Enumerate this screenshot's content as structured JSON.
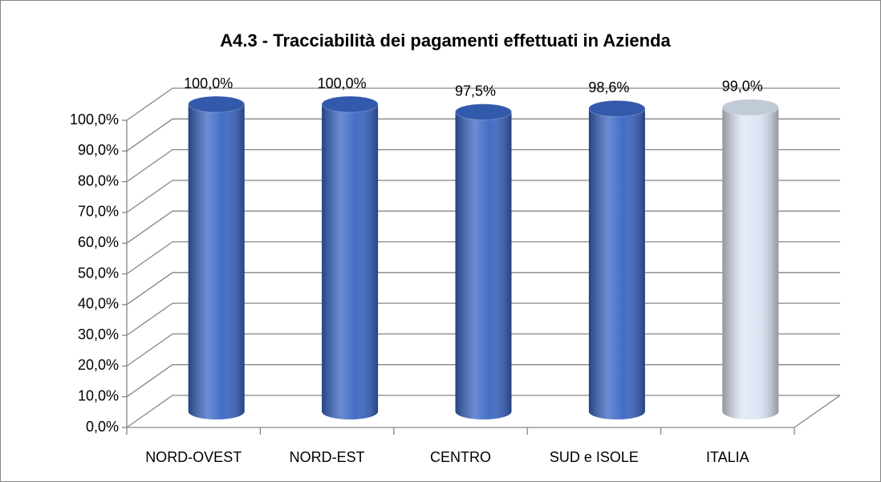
{
  "chart_data": {
    "type": "bar3d",
    "title": "A4.3 - Tracciabilità dei pagamenti effettuati in Azienda",
    "categories": [
      "NORD-OVEST",
      "NORD-EST",
      "CENTRO",
      "SUD e ISOLE",
      "ITALIA"
    ],
    "values": [
      100,
      100,
      97.5,
      98.6,
      99.0
    ],
    "value_labels": [
      "100,0%",
      "100,0%",
      "97,5%",
      "98,6%",
      "99,0%"
    ],
    "colors": [
      "#3a66c4",
      "#3a66c4",
      "#3a66c4",
      "#3a66c4",
      "#dce6f5"
    ],
    "ylim": [
      0,
      100
    ],
    "yticks": [
      {
        "value": 0,
        "label": "0,0%"
      },
      {
        "value": 10,
        "label": "10,0%"
      },
      {
        "value": 20,
        "label": "20,0%"
      },
      {
        "value": 30,
        "label": "30,0%"
      },
      {
        "value": 40,
        "label": "40,0%"
      },
      {
        "value": 50,
        "label": "50,0%"
      },
      {
        "value": 60,
        "label": "60,0%"
      },
      {
        "value": 70,
        "label": "70,0%"
      },
      {
        "value": 80,
        "label": "80,0%"
      },
      {
        "value": 90,
        "label": "90,0%"
      },
      {
        "value": 100,
        "label": "100,0%"
      }
    ],
    "grid": true
  }
}
